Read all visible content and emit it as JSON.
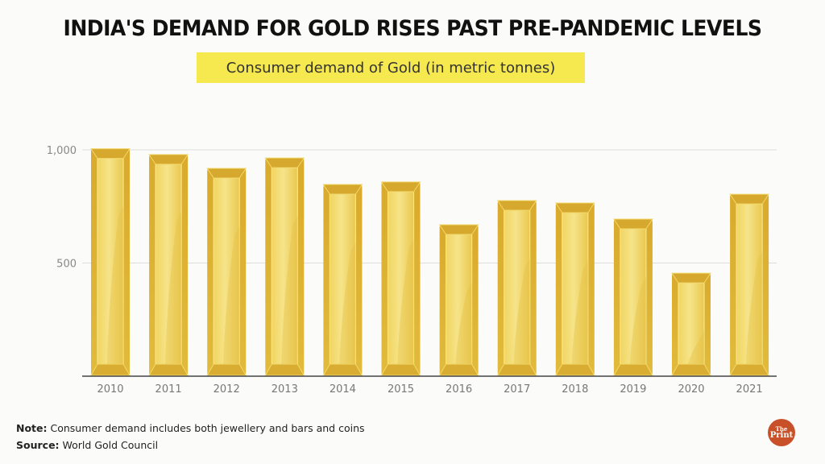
{
  "header": {
    "title": "INDIA'S DEMAND FOR GOLD RISES PAST PRE-PANDEMIC LEVELS",
    "subtitle": "Consumer demand of Gold (in metric tonnes)"
  },
  "colors": {
    "subtitle_bg": "#f5e94f",
    "bar_dark": "#d4a62a",
    "bar_mid": "#e8c64a",
    "bar_light": "#f3e07a",
    "logo_bg": "#c8512a"
  },
  "chart_data": {
    "type": "bar",
    "title": "Consumer demand of Gold (in metric tonnes)",
    "xlabel": "",
    "ylabel": "",
    "categories": [
      "2010",
      "2011",
      "2012",
      "2013",
      "2014",
      "2015",
      "2016",
      "2017",
      "2018",
      "2019",
      "2020",
      "2021"
    ],
    "values": [
      1005,
      979,
      918,
      964,
      847,
      858,
      669,
      776,
      765,
      694,
      455,
      804
    ],
    "ylim": [
      0,
      1000
    ],
    "yticks": [
      500,
      1000
    ],
    "ytick_labels": [
      "500",
      "1,000"
    ],
    "grid": true,
    "legend": "none"
  },
  "footer": {
    "note_label": "Note:",
    "note_text": " Consumer demand includes both jewellery and bars and coins",
    "source_label": "Source:",
    "source_text": " World Gold Council"
  },
  "logo": {
    "line1": "The",
    "line2": "Print"
  }
}
